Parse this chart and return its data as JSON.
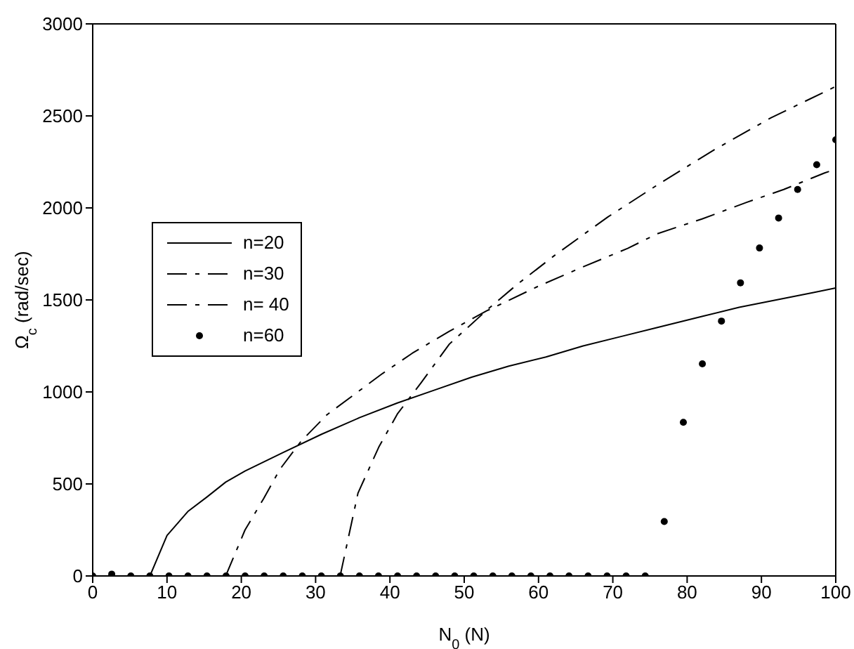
{
  "chart_data": {
    "type": "line",
    "xlabel": "N$_{0}$ (N)",
    "ylabel": "Ω$_{c}$ (rad/sec)",
    "xlim": [
      0,
      100
    ],
    "xticks": [
      0,
      10,
      20,
      30,
      40,
      50,
      60,
      70,
      80,
      90,
      100
    ],
    "ylim": [
      0,
      3000
    ],
    "yticks": [
      0,
      500,
      1000,
      1500,
      2000,
      2500,
      3000
    ],
    "grid": false,
    "legend": "left",
    "marker": "none",
    "series": [
      {
        "name": "n=20",
        "color": "#000000",
        "line_style": "solid",
        "x": [
          7.7,
          10,
          12.8,
          15.4,
          17.9,
          20.5,
          25.6,
          30.8,
          35.9,
          41,
          46,
          51,
          56,
          61,
          66,
          71,
          76,
          82,
          87,
          92,
          97,
          100
        ],
        "values": [
          0,
          220,
          350,
          430,
          510,
          570,
          670,
          770,
          860,
          940,
          1010,
          1080,
          1140,
          1190,
          1250,
          1300,
          1350,
          1410,
          1460,
          1500,
          1540,
          1565
        ]
      },
      {
        "name": "n=30",
        "color": "#000000",
        "line_style": "dashed",
        "x": [
          17.9,
          20.5,
          23,
          25.2,
          28,
          31.5,
          35,
          39,
          43,
          48,
          53,
          60,
          66,
          72,
          76,
          82,
          88,
          93,
          98.5,
          100
        ],
        "values": [
          0,
          250,
          420,
          580,
          730,
          875,
          980,
          1100,
          1210,
          1330,
          1440,
          1575,
          1680,
          1780,
          1860,
          1940,
          2030,
          2100,
          2190,
          2210
        ]
      },
      {
        "name": "n= 40",
        "color": "#000000",
        "line_style": "dashed",
        "x": [
          33.3,
          35.7,
          38.5,
          41,
          44.2,
          48,
          53.2,
          57,
          62.1,
          69.3,
          76.2,
          83.4,
          91.3,
          100
        ],
        "values": [
          0,
          450,
          700,
          880,
          1050,
          1260,
          1450,
          1580,
          1740,
          1950,
          2130,
          2310,
          2490,
          2660
        ]
      },
      {
        "name": "n=60",
        "type": "scatter",
        "color": "#000000",
        "marker": "circle",
        "x": [
          0,
          2.56,
          5.13,
          7.69,
          10.26,
          12.82,
          15.38,
          17.95,
          20.51,
          23.08,
          25.64,
          28.21,
          30.77,
          33.33,
          35.9,
          38.46,
          41.03,
          43.59,
          46.15,
          48.72,
          51.28,
          53.85,
          56.41,
          58.97,
          61.54,
          64.1,
          66.67,
          69.23,
          71.79,
          74.36,
          76.92,
          79.49,
          82.05,
          84.62,
          87.18,
          89.74,
          92.31,
          94.87,
          97.44,
          100
        ],
        "values": [
          0,
          10,
          0,
          0,
          0,
          0,
          0,
          0,
          0,
          0,
          0,
          0,
          0,
          0,
          0,
          0,
          0,
          0,
          0,
          0,
          0,
          0,
          0,
          0,
          0,
          0,
          0,
          0,
          0,
          0,
          296,
          835,
          1153,
          1385,
          1593,
          1782,
          1945,
          2100,
          2235,
          2370
        ]
      }
    ]
  }
}
